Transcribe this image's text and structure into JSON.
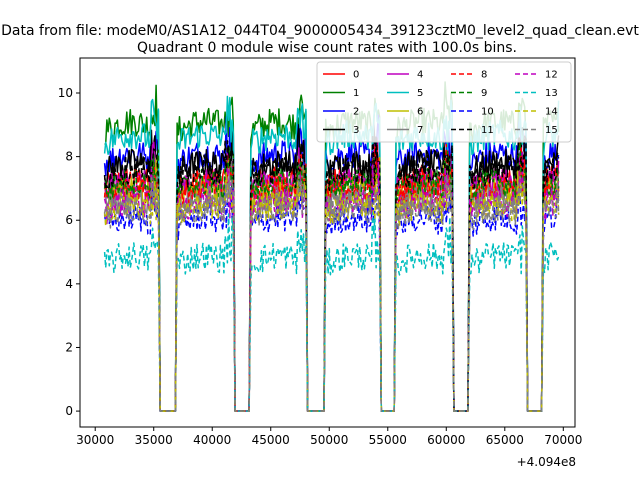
{
  "figure": {
    "suptitle": "Data from file: modeM0/AS1A12_044T04_9000005434_39123cztM0_level2_quad_clean.evt",
    "offset_text": "+4.094e8"
  },
  "chart_data": {
    "type": "line",
    "title": "Quadrant 0 module wise count rates with 100.0s bins.",
    "xlabel": "",
    "ylabel": "",
    "xlim": [
      28700,
      71000
    ],
    "ylim": [
      -0.5,
      11.1
    ],
    "x_ticks": [
      30000,
      35000,
      40000,
      45000,
      50000,
      55000,
      60000,
      65000,
      70000
    ],
    "y_ticks": [
      0,
      2,
      4,
      6,
      8,
      10
    ],
    "x_offset": 409400000,
    "grid": false,
    "legend_position": "top-right",
    "legend_columns": 4,
    "time_segments": [
      [
        30800,
        35400
      ],
      [
        37000,
        41800
      ],
      [
        43300,
        48000
      ],
      [
        49700,
        54300
      ],
      [
        55700,
        60500
      ],
      [
        62000,
        66800
      ],
      [
        68300,
        69600
      ]
    ],
    "series": [
      {
        "name": "0",
        "color": "#ff0000",
        "style": "solid",
        "level": 7.0
      },
      {
        "name": "1",
        "color": "#008000",
        "style": "solid",
        "level": 8.8
      },
      {
        "name": "2",
        "color": "#0000ff",
        "style": "solid",
        "level": 7.8
      },
      {
        "name": "3",
        "color": "#000000",
        "style": "solid",
        "level": 7.5
      },
      {
        "name": "4",
        "color": "#bf00bf",
        "style": "solid",
        "level": 6.9
      },
      {
        "name": "5",
        "color": "#00bfbf",
        "style": "solid",
        "level": 8.4
      },
      {
        "name": "6",
        "color": "#bfbf00",
        "style": "solid",
        "level": 6.6
      },
      {
        "name": "7",
        "color": "#808080",
        "style": "solid",
        "level": 6.4
      },
      {
        "name": "8",
        "color": "#ff0000",
        "style": "dashed",
        "level": 6.8
      },
      {
        "name": "9",
        "color": "#008000",
        "style": "dashed",
        "level": 6.9
      },
      {
        "name": "10",
        "color": "#0000ff",
        "style": "dashed",
        "level": 5.8
      },
      {
        "name": "11",
        "color": "#000000",
        "style": "dashed",
        "level": 7.3
      },
      {
        "name": "12",
        "color": "#bf00bf",
        "style": "dashed",
        "level": 6.3
      },
      {
        "name": "13",
        "color": "#00bfbf",
        "style": "dashed",
        "level": 4.6
      },
      {
        "name": "14",
        "color": "#bfbf00",
        "style": "dashed",
        "level": 6.2
      },
      {
        "name": "15",
        "color": "#808080",
        "style": "dashed",
        "level": 6.1
      }
    ]
  }
}
